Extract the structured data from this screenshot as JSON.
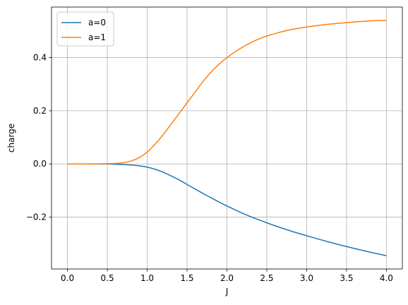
{
  "chart_data": {
    "type": "line",
    "title": "",
    "xlabel": "J",
    "ylabel": "charge",
    "xlim": [
      -0.2,
      4.2
    ],
    "ylim": [
      -0.395,
      0.59
    ],
    "grid": true,
    "legend_position": "top-left",
    "x_ticks": [
      0.0,
      0.5,
      1.0,
      1.5,
      2.0,
      2.5,
      3.0,
      3.5,
      4.0
    ],
    "x_tick_labels": [
      "0.0",
      "0.5",
      "1.0",
      "1.5",
      "2.0",
      "2.5",
      "3.0",
      "3.5",
      "4.0"
    ],
    "y_ticks": [
      -0.2,
      0.0,
      0.2,
      0.4
    ],
    "y_tick_labels": [
      "−0.2",
      "0.0",
      "0.2",
      "0.4"
    ],
    "series": [
      {
        "name": "a=0",
        "color": "#1f77b4",
        "x": [
          0.0,
          0.25,
          0.5,
          0.6,
          0.7,
          0.8,
          0.9,
          1.0,
          1.1,
          1.2,
          1.3,
          1.4,
          1.5,
          1.6,
          1.7,
          1.8,
          1.9,
          2.0,
          2.2,
          2.4,
          2.6,
          2.8,
          3.0,
          3.2,
          3.4,
          3.6,
          3.8,
          4.0
        ],
        "y": [
          0.0,
          0.0,
          0.0,
          -0.001,
          -0.002,
          -0.004,
          -0.007,
          -0.012,
          -0.02,
          -0.031,
          -0.045,
          -0.06,
          -0.077,
          -0.094,
          -0.111,
          -0.127,
          -0.143,
          -0.158,
          -0.186,
          -0.21,
          -0.232,
          -0.252,
          -0.27,
          -0.287,
          -0.303,
          -0.318,
          -0.332,
          -0.345
        ]
      },
      {
        "name": "a=1",
        "color": "#ff7f0e",
        "x": [
          0.0,
          0.25,
          0.5,
          0.6,
          0.7,
          0.8,
          0.9,
          1.0,
          1.1,
          1.2,
          1.3,
          1.4,
          1.5,
          1.6,
          1.7,
          1.8,
          1.9,
          2.0,
          2.2,
          2.4,
          2.6,
          2.8,
          3.0,
          3.2,
          3.4,
          3.6,
          3.8,
          4.0
        ],
        "y": [
          0.0,
          0.0,
          0.001,
          0.002,
          0.005,
          0.011,
          0.024,
          0.045,
          0.075,
          0.11,
          0.15,
          0.19,
          0.23,
          0.27,
          0.31,
          0.345,
          0.375,
          0.4,
          0.44,
          0.47,
          0.49,
          0.505,
          0.515,
          0.523,
          0.529,
          0.534,
          0.538,
          0.54
        ]
      }
    ]
  }
}
